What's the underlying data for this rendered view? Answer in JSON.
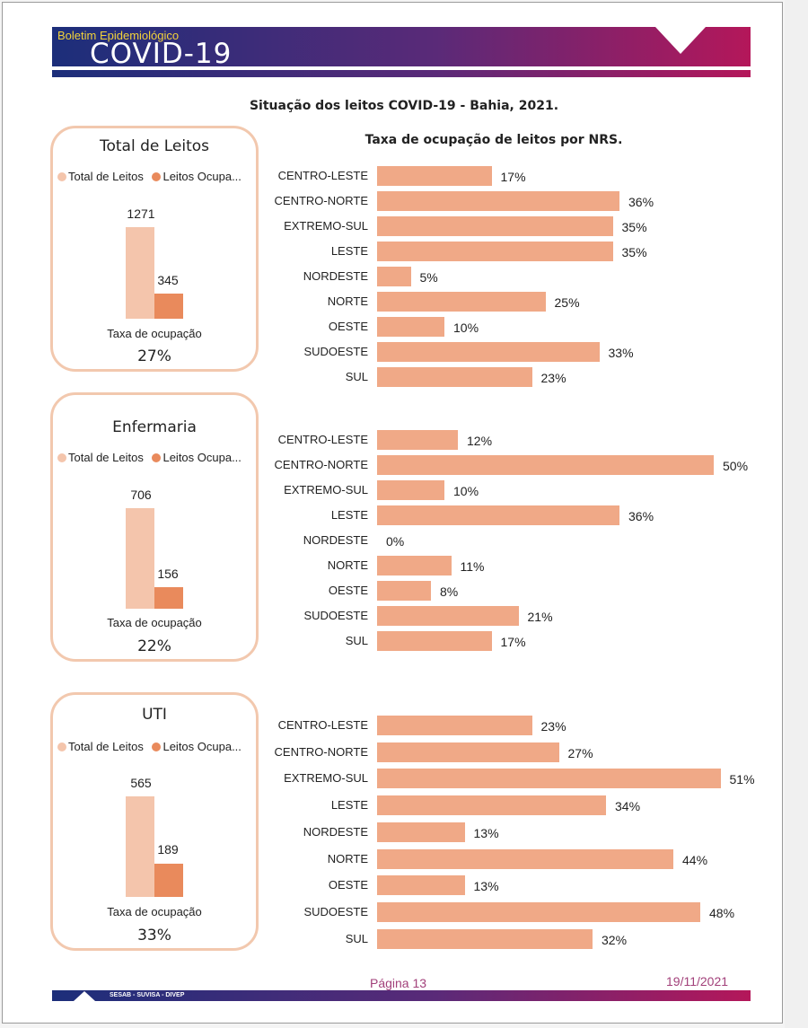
{
  "header": {
    "brand_sub": "Boletim Epidemiológico",
    "brand_main": "COVID-19",
    "colors": {
      "navy": "#1c2e7a",
      "magenta": "#b4175a",
      "yellow": "#f2d23a"
    }
  },
  "title": "Situação dos leitos COVID-19 - Bahia, 2021.",
  "chart_subtitle": "Taxa de ocupação de leitos por NRS.",
  "legend": {
    "total": "Total de Leitos",
    "occupied": "Leitos Ocupa..."
  },
  "rate_label": "Taxa de ocupação",
  "colors": {
    "total": "#f4c5ac",
    "occupied": "#e98a5c",
    "hbar": "#f0a987",
    "card_border": "#f2c8ae"
  },
  "cards": [
    {
      "title": "Total de Leitos",
      "total": 1271,
      "occupied": 345,
      "rate": "27%"
    },
    {
      "title": "Enfermaria",
      "total": 706,
      "occupied": 156,
      "rate": "22%"
    },
    {
      "title": "UTI",
      "total": 565,
      "occupied": 189,
      "rate": "33%"
    }
  ],
  "chart_data": [
    {
      "type": "bar",
      "orientation": "horizontal",
      "categories": [
        "CENTRO-LESTE",
        "CENTRO-NORTE",
        "EXTREMO-SUL",
        "LESTE",
        "NORDESTE",
        "NORTE",
        "OESTE",
        "SUDOESTE",
        "SUL"
      ],
      "values": [
        17,
        36,
        35,
        35,
        5,
        25,
        10,
        33,
        23
      ],
      "labels": [
        "17%",
        "36%",
        "35%",
        "35%",
        "5%",
        "25%",
        "10%",
        "33%",
        "23%"
      ]
    },
    {
      "type": "bar",
      "orientation": "horizontal",
      "categories": [
        "CENTRO-LESTE",
        "CENTRO-NORTE",
        "EXTREMO-SUL",
        "LESTE",
        "NORDESTE",
        "NORTE",
        "OESTE",
        "SUDOESTE",
        "SUL"
      ],
      "values": [
        12,
        50,
        10,
        36,
        0,
        11,
        8,
        21,
        17
      ],
      "labels": [
        "12%",
        "50%",
        "10%",
        "36%",
        "0%",
        "11%",
        "8%",
        "21%",
        "17%"
      ]
    },
    {
      "type": "bar",
      "orientation": "horizontal",
      "categories": [
        "CENTRO-LESTE",
        "CENTRO-NORTE",
        "EXTREMO-SUL",
        "LESTE",
        "NORDESTE",
        "NORTE",
        "OESTE",
        "SUDOESTE",
        "SUL"
      ],
      "values": [
        23,
        27,
        51,
        34,
        13,
        44,
        13,
        48,
        32
      ],
      "labels": [
        "23%",
        "27%",
        "51%",
        "34%",
        "13%",
        "44%",
        "13%",
        "48%",
        "32%"
      ]
    }
  ],
  "footer": {
    "page": "Página 13",
    "date": "19/11/2021",
    "org": "SESAB - SUVISA - DIVEP",
    "color": "#a2407a"
  }
}
